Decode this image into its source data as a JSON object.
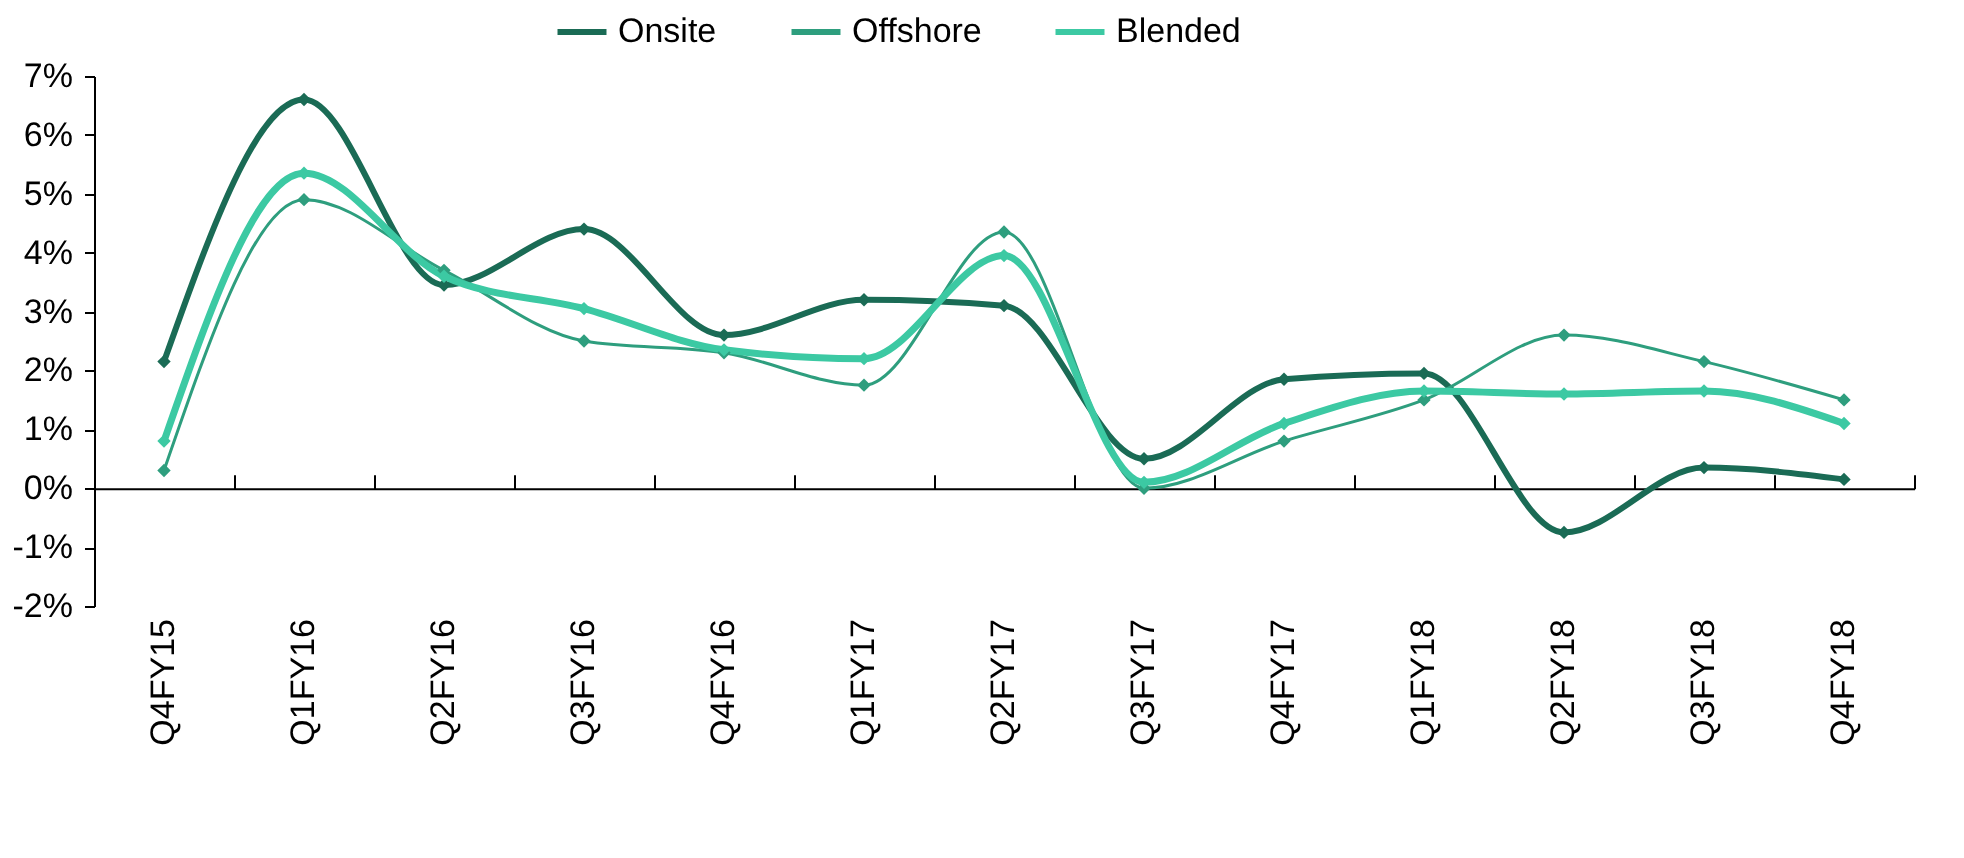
{
  "chart_data": {
    "type": "line",
    "categories": [
      "Q4FY15",
      "Q1FY16",
      "Q2FY16",
      "Q3FY16",
      "Q4FY16",
      "Q1FY17",
      "Q2FY17",
      "Q3FY17",
      "Q4FY17",
      "Q1FY18",
      "Q2FY18",
      "Q3FY18",
      "Q4FY18"
    ],
    "series": [
      {
        "name": "Onsite",
        "color": "#1a6b55",
        "values": [
          2.15,
          6.6,
          3.45,
          4.4,
          2.6,
          3.2,
          3.1,
          0.5,
          1.85,
          1.95,
          -0.75,
          0.35,
          0.15
        ]
      },
      {
        "name": "Offshore",
        "color": "#2e9e7e",
        "values": [
          0.3,
          4.9,
          3.7,
          2.5,
          2.3,
          1.75,
          4.35,
          0.0,
          0.8,
          1.5,
          2.6,
          2.15,
          1.5
        ]
      },
      {
        "name": "Blended",
        "color": "#3cc9a3",
        "values": [
          0.8,
          5.35,
          3.6,
          3.05,
          2.35,
          2.2,
          3.95,
          0.1,
          1.1,
          1.65,
          1.6,
          1.65,
          1.1
        ]
      }
    ],
    "ylim": [
      -2,
      7
    ],
    "yticks": [
      {
        "value": -2,
        "label": "-2%"
      },
      {
        "value": -1,
        "label": "-1%"
      },
      {
        "value": 0,
        "label": "0%"
      },
      {
        "value": 1,
        "label": "1%"
      },
      {
        "value": 2,
        "label": "2%"
      },
      {
        "value": 3,
        "label": "3%"
      },
      {
        "value": 4,
        "label": "4%"
      },
      {
        "value": 5,
        "label": "5%"
      },
      {
        "value": 6,
        "label": "6%"
      },
      {
        "value": 7,
        "label": "7%"
      }
    ],
    "legend": "top",
    "marker": "diamond",
    "line_style": "solid"
  }
}
